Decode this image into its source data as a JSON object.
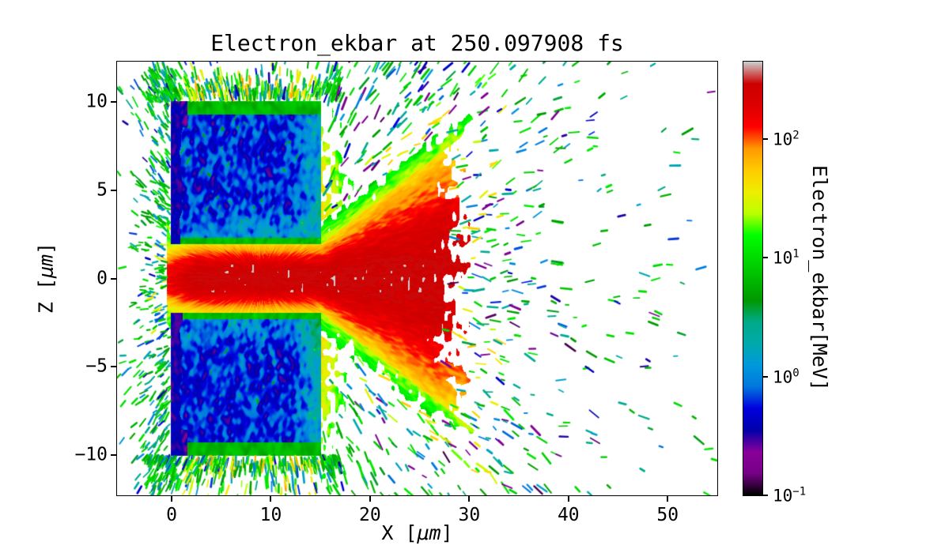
{
  "title": "Electron_ekbar at 250.097908 fs",
  "axes": {
    "xlabel": {
      "prefix": "X [",
      "unit": "μm",
      "suffix": "]"
    },
    "ylabel": {
      "prefix": "Z [",
      "unit": "μm",
      "suffix": "]"
    },
    "xlim": [
      -5.5,
      55
    ],
    "ylim": [
      -12.3,
      12.3
    ],
    "x_ticks": [
      {
        "value": 0,
        "label": "0"
      },
      {
        "value": 10,
        "label": "10"
      },
      {
        "value": 20,
        "label": "20"
      },
      {
        "value": 30,
        "label": "30"
      },
      {
        "value": 40,
        "label": "40"
      },
      {
        "value": 50,
        "label": "50"
      }
    ],
    "y_ticks": [
      {
        "value": 10,
        "label": "10"
      },
      {
        "value": 5,
        "label": "5"
      },
      {
        "value": 0,
        "label": "0"
      },
      {
        "value": -5,
        "label": "−5"
      },
      {
        "value": -10,
        "label": "−10"
      }
    ]
  },
  "colorbar": {
    "label": "Electron_ekbar[MeV]",
    "scale": "log",
    "vmin": 0.1,
    "vmax": 450,
    "ticks": [
      {
        "value": 100,
        "mantissa": "10",
        "exponent": "2"
      },
      {
        "value": 10,
        "mantissa": "10",
        "exponent": "1"
      },
      {
        "value": 1,
        "mantissa": "10",
        "exponent": "0"
      },
      {
        "value": 0.1,
        "mantissa": "10",
        "exponent": "−1"
      }
    ],
    "colormap_name": "nipy_spectral",
    "colormap_stops": [
      [
        0.0,
        "#000000"
      ],
      [
        0.05,
        "#770088"
      ],
      [
        0.1,
        "#880099"
      ],
      [
        0.15,
        "#0000aa"
      ],
      [
        0.2,
        "#0000dd"
      ],
      [
        0.25,
        "#0077dd"
      ],
      [
        0.3,
        "#0099dd"
      ],
      [
        0.35,
        "#00aaaa"
      ],
      [
        0.4,
        "#00aa88"
      ],
      [
        0.45,
        "#009900"
      ],
      [
        0.5,
        "#00bb00"
      ],
      [
        0.55,
        "#00dd00"
      ],
      [
        0.6,
        "#00ff00"
      ],
      [
        0.65,
        "#bbff00"
      ],
      [
        0.7,
        "#eeee00"
      ],
      [
        0.75,
        "#ffcc00"
      ],
      [
        0.8,
        "#ff9900"
      ],
      [
        0.85,
        "#ff0000"
      ],
      [
        0.9,
        "#dd0000"
      ],
      [
        0.95,
        "#cc0000"
      ],
      [
        1.0,
        "#cccccc"
      ]
    ]
  },
  "chart_data": {
    "type": "heatmap",
    "title": "Electron_ekbar at 250.097908 fs",
    "quantity": "Electron_ekbar",
    "time_fs": 250.097908,
    "xlabel": "X [μm]",
    "ylabel": "Z [μm]",
    "xlim": [
      -5.5,
      55
    ],
    "ylim": [
      -12.3,
      12.3
    ],
    "grid": false,
    "value_label": "Electron_ekbar[MeV]",
    "value_scale": "log",
    "value_range_MeV": [
      0.1,
      450
    ],
    "features": [
      {
        "name": "upper-target-block",
        "region": {
          "x": [
            0,
            15
          ],
          "z": [
            2,
            10
          ]
        },
        "value_MeV": [
          0.3,
          3
        ],
        "description": "dark blue block with cyan streak texture, green rim, purple left edge, dark corner blotch"
      },
      {
        "name": "lower-target-block",
        "region": {
          "x": [
            0,
            15
          ],
          "z": [
            -10,
            -2
          ]
        },
        "value_MeV": [
          0.3,
          3
        ],
        "description": "dark blue block with cyan streak texture, green rim, purple left edge, dark corner blotch"
      },
      {
        "name": "hot-channel",
        "region": {
          "x": [
            0,
            15
          ],
          "z": [
            -2,
            2
          ]
        },
        "value_MeV": [
          30,
          450
        ],
        "description": "yellow→orange→red jet along z=0 with saturated white-gray speckles near the axis"
      },
      {
        "name": "expansion-fan",
        "region": {
          "x": [
            15,
            30
          ],
          "z": [
            -8,
            8
          ]
        },
        "value_MeV": [
          20,
          450
        ],
        "description": "red cone fanning out from channel exit, yellow then green fringes, ragged end near x≈30"
      },
      {
        "name": "ejected-sheath",
        "region": {
          "x": [
            15,
            21
          ],
          "z": [
            -11,
            11
          ]
        },
        "value_MeV": [
          5,
          60
        ],
        "description": "patchy yellow-green curtain just right of the target blocks"
      },
      {
        "name": "particle-halo",
        "region": {
          "x": [
            -5,
            55
          ],
          "z": [
            -12,
            12
          ]
        },
        "value_MeV": [
          0.1,
          20
        ],
        "description": "sparse elongated particle streaks (green, cyan, blue, purple, some yellow), density decreasing with x; dense green cloud left of target and above/below it"
      }
    ]
  }
}
